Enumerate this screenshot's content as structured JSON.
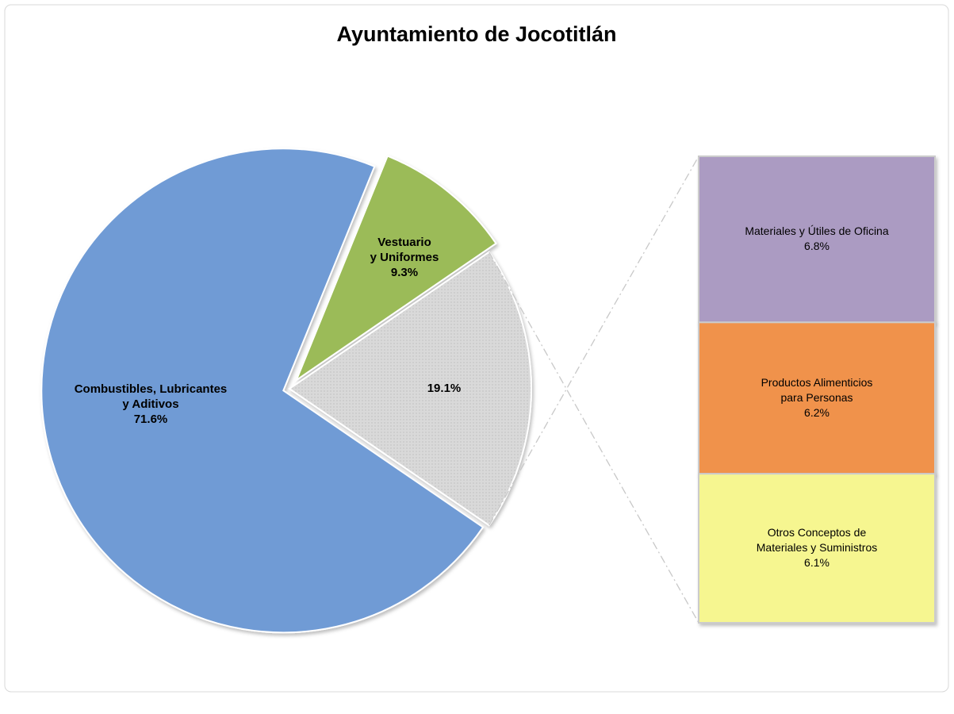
{
  "chart_data": {
    "type": "pie-of-bar",
    "title": "Ayuntamiento de Jocotitlán",
    "categories": [
      [
        "Combustibles, Lubricantes",
        "y Aditivos"
      ],
      [
        "Vestuario",
        "y Uniformes"
      ],
      null
    ],
    "values": [
      71.6,
      9.3,
      19.1
    ],
    "value_labels": [
      "71.6%",
      "9.3%",
      "19.1%"
    ],
    "colors": [
      "#6f9bd5",
      "#9bbb59",
      "#d9d9d9"
    ],
    "secondary": {
      "categories": [
        [
          "Materiales y Útiles de Oficina"
        ],
        [
          "Productos Alimenticios",
          "para Personas"
        ],
        [
          "Otros Conceptos de",
          "Materiales y Suministros"
        ]
      ],
      "values": [
        6.8,
        6.2,
        6.1
      ],
      "value_labels": [
        "6.8%",
        "6.2%",
        "6.1%"
      ],
      "colors": [
        "#ab9bc2",
        "#f0924b",
        "#f6f690"
      ]
    }
  }
}
